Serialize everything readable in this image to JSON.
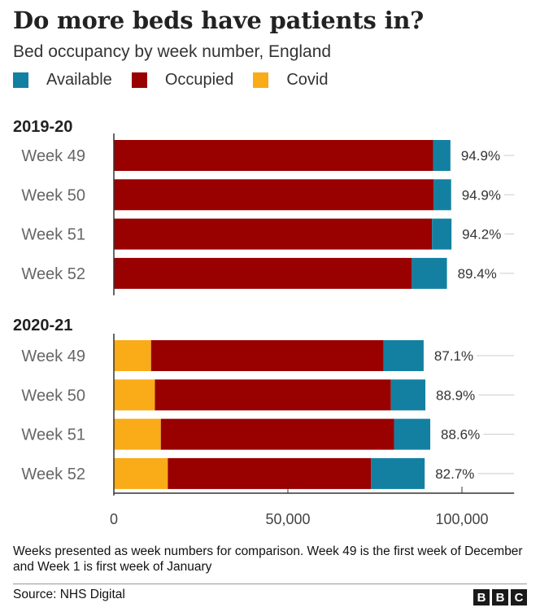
{
  "header": {
    "title": "Do more beds have patients in?",
    "subtitle": "Bed occupancy by week number, England"
  },
  "legend": [
    {
      "label": "Available",
      "color": "#1380A1"
    },
    {
      "label": "Occupied",
      "color": "#990000"
    },
    {
      "label": "Covid",
      "color": "#FAAB18"
    }
  ],
  "footer": {
    "note": "Weeks presented as week numbers for comparison. Week 49 is the first week of December and Week 1 is first week of January",
    "source": "Source: NHS Digital",
    "logo": [
      "B",
      "B",
      "C"
    ]
  },
  "chart_data": {
    "type": "bar",
    "orientation": "horizontal",
    "stacked": true,
    "xlim": [
      0,
      115000
    ],
    "xticks": [
      0,
      50000,
      100000
    ],
    "xtick_labels": [
      "0",
      "50,000",
      "100,000"
    ],
    "grid": true,
    "legend_position": "top-left",
    "series_order": [
      "Covid",
      "Occupied",
      "Available"
    ],
    "colors": {
      "Covid": "#FAAB18",
      "Occupied": "#990000",
      "Available": "#1380A1"
    },
    "groups": [
      {
        "label": "2019-20",
        "rows": [
          {
            "category": "Week 49",
            "Covid": 0,
            "Occupied": 91700,
            "Available": 5000,
            "pct_label": "94.9%"
          },
          {
            "category": "Week 50",
            "Covid": 0,
            "Occupied": 91900,
            "Available": 5000,
            "pct_label": "94.9%"
          },
          {
            "category": "Week 51",
            "Covid": 0,
            "Occupied": 91400,
            "Available": 5600,
            "pct_label": "94.2%"
          },
          {
            "category": "Week 52",
            "Covid": 0,
            "Occupied": 85600,
            "Available": 10100,
            "pct_label": "89.4%"
          }
        ]
      },
      {
        "label": "2020-21",
        "rows": [
          {
            "category": "Week 49",
            "Covid": 10700,
            "Occupied": 66800,
            "Available": 11500,
            "pct_label": "87.1%"
          },
          {
            "category": "Week 50",
            "Covid": 11800,
            "Occupied": 67800,
            "Available": 9900,
            "pct_label": "88.9%"
          },
          {
            "category": "Week 51",
            "Covid": 13500,
            "Occupied": 67000,
            "Available": 10400,
            "pct_label": "88.6%"
          },
          {
            "category": "Week 52",
            "Covid": 15500,
            "Occupied": 58400,
            "Available": 15400,
            "pct_label": "82.7%"
          }
        ]
      }
    ]
  }
}
